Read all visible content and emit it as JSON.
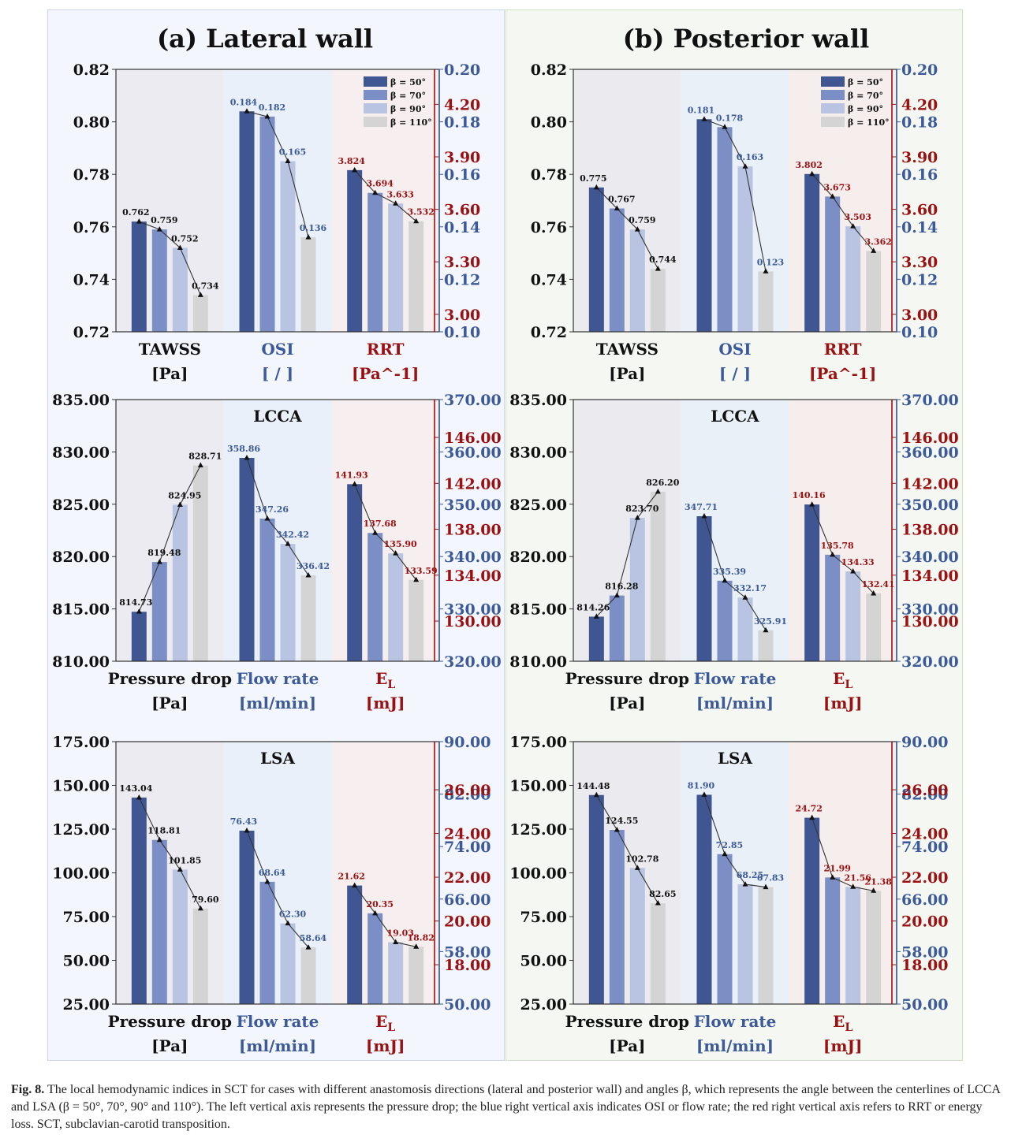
{
  "panel_titles": [
    "(a) Lateral wall",
    "(b) Posterior wall"
  ],
  "colors": {
    "bar_50": "#3f5693",
    "bar_70": "#7b8fc6",
    "bar_90": "#b8c4e2",
    "bar_110": "#d4d4d4",
    "blue_axis": "#3c5a9a",
    "red_axis": "#9b1111",
    "group_left_bg": "#e9e9ee",
    "group_mid_bg": "#e6eef8",
    "group_right_bg": "#f6ecec"
  },
  "legend": [
    "β = 50°",
    "β = 70°",
    "β = 90°",
    "β = 110°"
  ],
  "caption": {
    "label": "Fig. 8.",
    "text": "The local hemodynamic indices in SCT for cases with different anastomosis directions (lateral and posterior wall) and angles β, which represents the angle between the centerlines of LCCA and LSA (β = 50°, 70°, 90° and 110°). The left vertical axis represents the pressure drop; the blue right vertical axis indicates OSI or flow rate; the red right vertical axis refers to RRT or energy loss. SCT, subclavian-carotid transposition."
  },
  "chart_data": [
    {
      "type": "bar",
      "panel": "a",
      "row": 0,
      "subtitle": "",
      "left_axis": {
        "min": 0.72,
        "max": 0.82,
        "ticks": [
          "0.72",
          "0.74",
          "0.76",
          "0.78",
          "0.80",
          "0.82"
        ]
      },
      "blue_axis": {
        "min": 0.1,
        "max": 0.2,
        "ticks": [
          "0.10",
          "0.12",
          "0.14",
          "0.16",
          "0.18",
          "0.20"
        ]
      },
      "red_axis": {
        "min": 2.9,
        "max": 4.4,
        "ticks": [
          "3.00",
          "3.30",
          "3.60",
          "3.90",
          "4.20"
        ]
      },
      "groups": [
        {
          "label": "TAWSS",
          "unit": "[Pa]",
          "axis": "left",
          "color": "black",
          "values": [
            0.762,
            0.759,
            0.752,
            0.734
          ],
          "labels": [
            "0.762",
            "0.759",
            "0.752",
            "0.734"
          ]
        },
        {
          "label": "OSI",
          "unit": "[ / ]",
          "axis": "blue",
          "color": "blue",
          "values": [
            0.184,
            0.182,
            0.165,
            0.136
          ],
          "labels": [
            "0.184",
            "0.182",
            "0.165",
            "0.136"
          ]
        },
        {
          "label": "RRT",
          "unit": "[Pa^-1]",
          "axis": "red",
          "color": "red",
          "values": [
            3.824,
            3.694,
            3.633,
            3.532
          ],
          "labels": [
            "3.824",
            "3.694",
            "3.633",
            "3.532"
          ]
        }
      ],
      "legend": true
    },
    {
      "type": "bar",
      "panel": "b",
      "row": 0,
      "subtitle": "",
      "left_axis": {
        "min": 0.72,
        "max": 0.82,
        "ticks": [
          "0.72",
          "0.74",
          "0.76",
          "0.78",
          "0.80",
          "0.82"
        ]
      },
      "blue_axis": {
        "min": 0.1,
        "max": 0.2,
        "ticks": [
          "0.10",
          "0.12",
          "0.14",
          "0.16",
          "0.18",
          "0.20"
        ]
      },
      "red_axis": {
        "min": 2.9,
        "max": 4.4,
        "ticks": [
          "3.00",
          "3.30",
          "3.60",
          "3.90",
          "4.20"
        ]
      },
      "groups": [
        {
          "label": "TAWSS",
          "unit": "[Pa]",
          "axis": "left",
          "color": "black",
          "values": [
            0.775,
            0.767,
            0.759,
            0.744
          ],
          "labels": [
            "0.775",
            "0.767",
            "0.759",
            "0.744"
          ]
        },
        {
          "label": "OSI",
          "unit": "[ / ]",
          "axis": "blue",
          "color": "blue",
          "values": [
            0.181,
            0.178,
            0.163,
            0.123
          ],
          "labels": [
            "0.181",
            "0.178",
            "0.163",
            "0.123"
          ]
        },
        {
          "label": "RRT",
          "unit": "[Pa^-1]",
          "axis": "red",
          "color": "red",
          "values": [
            3.802,
            3.673,
            3.503,
            3.362
          ],
          "labels": [
            "3.802",
            "3.673",
            "3.503",
            "3.362"
          ]
        }
      ],
      "legend": true
    },
    {
      "type": "bar",
      "panel": "a",
      "row": 1,
      "subtitle": "LCCA",
      "left_axis": {
        "min": 810,
        "max": 835,
        "ticks": [
          "810.00",
          "815.00",
          "820.00",
          "825.00",
          "830.00",
          "835.00"
        ]
      },
      "blue_axis": {
        "min": 320,
        "max": 370,
        "ticks": [
          "320.00",
          "330.00",
          "340.00",
          "350.00",
          "360.00",
          "370.00"
        ]
      },
      "red_axis": {
        "min": 126.5,
        "max": 149.3,
        "ticks": [
          "130.00",
          "134.00",
          "138.00",
          "142.00",
          "146.00"
        ]
      },
      "groups": [
        {
          "label": "Pressure drop",
          "unit": "[Pa]",
          "axis": "left",
          "color": "black",
          "values": [
            814.73,
            819.48,
            824.95,
            828.71
          ],
          "labels": [
            "814.73",
            "819.48",
            "824.95",
            "828.71"
          ]
        },
        {
          "label": "Flow rate",
          "unit": "[ml/min]",
          "axis": "blue",
          "color": "blue",
          "values": [
            358.86,
            347.26,
            342.42,
            336.42
          ],
          "labels": [
            "358.86",
            "347.26",
            "342.42",
            "336.42"
          ]
        },
        {
          "label": "E",
          "label_sub": "L",
          "unit": "[mJ]",
          "axis": "red",
          "color": "red",
          "values": [
            141.93,
            137.68,
            135.9,
            133.59
          ],
          "labels": [
            "141.93",
            "137.68",
            "135.90",
            "133.59"
          ]
        }
      ],
      "legend": false
    },
    {
      "type": "bar",
      "panel": "b",
      "row": 1,
      "subtitle": "LCCA",
      "left_axis": {
        "min": 810,
        "max": 835,
        "ticks": [
          "810.00",
          "815.00",
          "820.00",
          "825.00",
          "830.00",
          "835.00"
        ]
      },
      "blue_axis": {
        "min": 320,
        "max": 370,
        "ticks": [
          "320.00",
          "330.00",
          "340.00",
          "350.00",
          "360.00",
          "370.00"
        ]
      },
      "red_axis": {
        "min": 126.5,
        "max": 149.3,
        "ticks": [
          "130.00",
          "134.00",
          "138.00",
          "142.00",
          "146.00"
        ]
      },
      "groups": [
        {
          "label": "Pressure drop",
          "unit": "[Pa]",
          "axis": "left",
          "color": "black",
          "values": [
            814.26,
            816.28,
            823.7,
            826.2
          ],
          "labels": [
            "814.26",
            "816.28",
            "823.70",
            "826.20"
          ]
        },
        {
          "label": "Flow rate",
          "unit": "[ml/min]",
          "axis": "blue",
          "color": "blue",
          "values": [
            347.71,
            335.39,
            332.17,
            325.91
          ],
          "labels": [
            "347.71",
            "335.39",
            "332.17",
            "325.91"
          ]
        },
        {
          "label": "E",
          "label_sub": "L",
          "unit": "[mJ]",
          "axis": "red",
          "color": "red",
          "values": [
            140.16,
            135.78,
            134.33,
            132.41
          ],
          "labels": [
            "140.16",
            "135.78",
            "134.33",
            "132.41"
          ]
        }
      ],
      "legend": false
    },
    {
      "type": "bar",
      "panel": "a",
      "row": 2,
      "subtitle": "LSA",
      "left_axis": {
        "min": 25,
        "max": 175,
        "ticks": [
          "25.00",
          "50.00",
          "75.00",
          "100.00",
          "125.00",
          "150.00",
          "175.00"
        ]
      },
      "blue_axis": {
        "min": 50,
        "max": 90,
        "ticks": [
          "50.00",
          "58.00",
          "66.00",
          "74.00",
          "82.00",
          "90.00"
        ]
      },
      "red_axis": {
        "min": 16.2,
        "max": 28.2,
        "ticks": [
          "18.00",
          "20.00",
          "22.00",
          "24.00",
          "26.00"
        ]
      },
      "groups": [
        {
          "label": "Pressure drop",
          "unit": "[Pa]",
          "axis": "left",
          "color": "black",
          "values": [
            143.04,
            118.81,
            101.85,
            79.6
          ],
          "labels": [
            "143.04",
            "118.81",
            "101.85",
            "79.60"
          ]
        },
        {
          "label": "Flow rate",
          "unit": "[ml/min]",
          "axis": "blue",
          "color": "blue",
          "values": [
            76.43,
            68.64,
            62.3,
            58.64
          ],
          "labels": [
            "76.43",
            "68.64",
            "62.30",
            "58.64"
          ]
        },
        {
          "label": "E",
          "label_sub": "L",
          "unit": "[mJ]",
          "axis": "red",
          "color": "red",
          "values": [
            21.62,
            20.35,
            19.03,
            18.82
          ],
          "labels": [
            "21.62",
            "20.35",
            "19.03",
            "18.82"
          ]
        }
      ],
      "legend": false
    },
    {
      "type": "bar",
      "panel": "b",
      "row": 2,
      "subtitle": "LSA",
      "left_axis": {
        "min": 25,
        "max": 175,
        "ticks": [
          "25.00",
          "50.00",
          "75.00",
          "100.00",
          "125.00",
          "150.00",
          "175.00"
        ]
      },
      "blue_axis": {
        "min": 50,
        "max": 90,
        "ticks": [
          "50.00",
          "58.00",
          "66.00",
          "74.00",
          "82.00",
          "90.00"
        ]
      },
      "red_axis": {
        "min": 16.2,
        "max": 28.2,
        "ticks": [
          "18.00",
          "20.00",
          "22.00",
          "24.00",
          "26.00"
        ]
      },
      "groups": [
        {
          "label": "Pressure drop",
          "unit": "[Pa]",
          "axis": "left",
          "color": "black",
          "values": [
            144.48,
            124.55,
            102.78,
            82.65
          ],
          "labels": [
            "144.48",
            "124.55",
            "102.78",
            "82.65"
          ]
        },
        {
          "label": "Flow rate",
          "unit": "[ml/min]",
          "axis": "blue",
          "color": "blue",
          "values": [
            81.9,
            72.85,
            68.25,
            67.83
          ],
          "labels": [
            "81.90",
            "72.85",
            "68.25",
            "67.83"
          ]
        },
        {
          "label": "E",
          "label_sub": "L",
          "unit": "[mJ]",
          "axis": "red",
          "color": "red",
          "values": [
            24.72,
            21.99,
            21.56,
            21.38
          ],
          "labels": [
            "24.72",
            "21.99",
            "21.56",
            "21.38"
          ]
        }
      ],
      "legend": false
    }
  ]
}
